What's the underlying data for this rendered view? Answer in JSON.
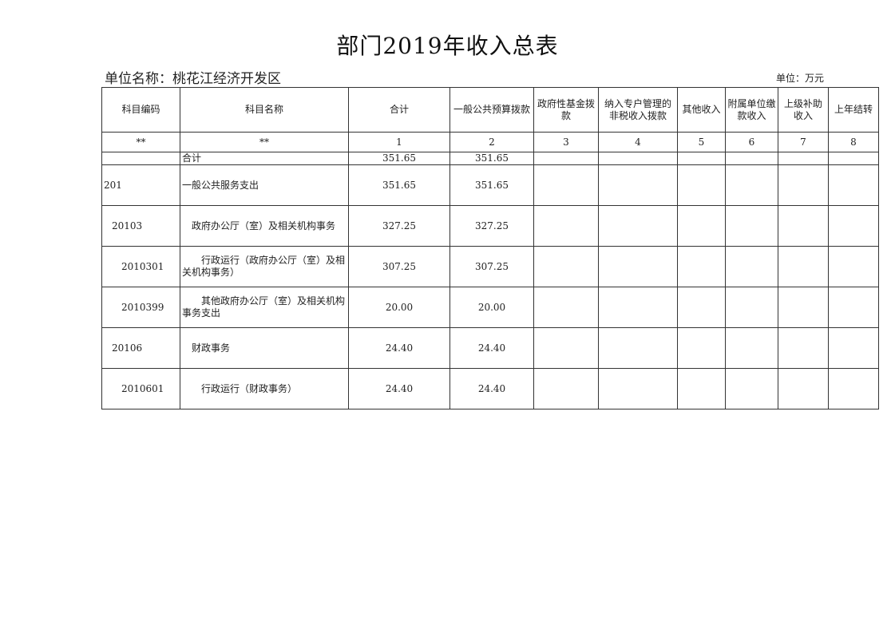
{
  "title": "部门2019年收入总表",
  "unit_name": "单位名称：桃花江经济开发区",
  "unit": "单位：万元",
  "table": {
    "headers": [
      "科目编码",
      "科目名称",
      "合计",
      "一般公共预算拨款",
      "政府性基金拨款",
      "纳入专户管理的非税收入拨款",
      "其他收入",
      "附属单位缴款收入",
      "上级补助收入",
      "上年结转"
    ],
    "index_row": [
      "**",
      "**",
      "1",
      "2",
      "3",
      "4",
      "5",
      "6",
      "7",
      "8"
    ],
    "rows": [
      {
        "code": "",
        "name": "合计",
        "total": "351.65",
        "general": "351.65"
      },
      {
        "code": "201",
        "name": "一般公共服务支出",
        "total": "351.65",
        "general": "351.65"
      },
      {
        "code": "20103",
        "name": "政府办公厅（室）及相关机构事务",
        "total": "327.25",
        "general": "327.25"
      },
      {
        "code": "2010301",
        "name": "行政运行（政府办公厅（室）及相关机构事务）",
        "total": "307.25",
        "general": "307.25"
      },
      {
        "code": "2010399",
        "name": "其他政府办公厅（室）及相关机构事务支出",
        "total": "20.00",
        "general": "20.00"
      },
      {
        "code": "20106",
        "name": "财政事务",
        "total": "24.40",
        "general": "24.40"
      },
      {
        "code": "2010601",
        "name": "行政运行（财政事务）",
        "total": "24.40",
        "general": "24.40"
      }
    ]
  }
}
